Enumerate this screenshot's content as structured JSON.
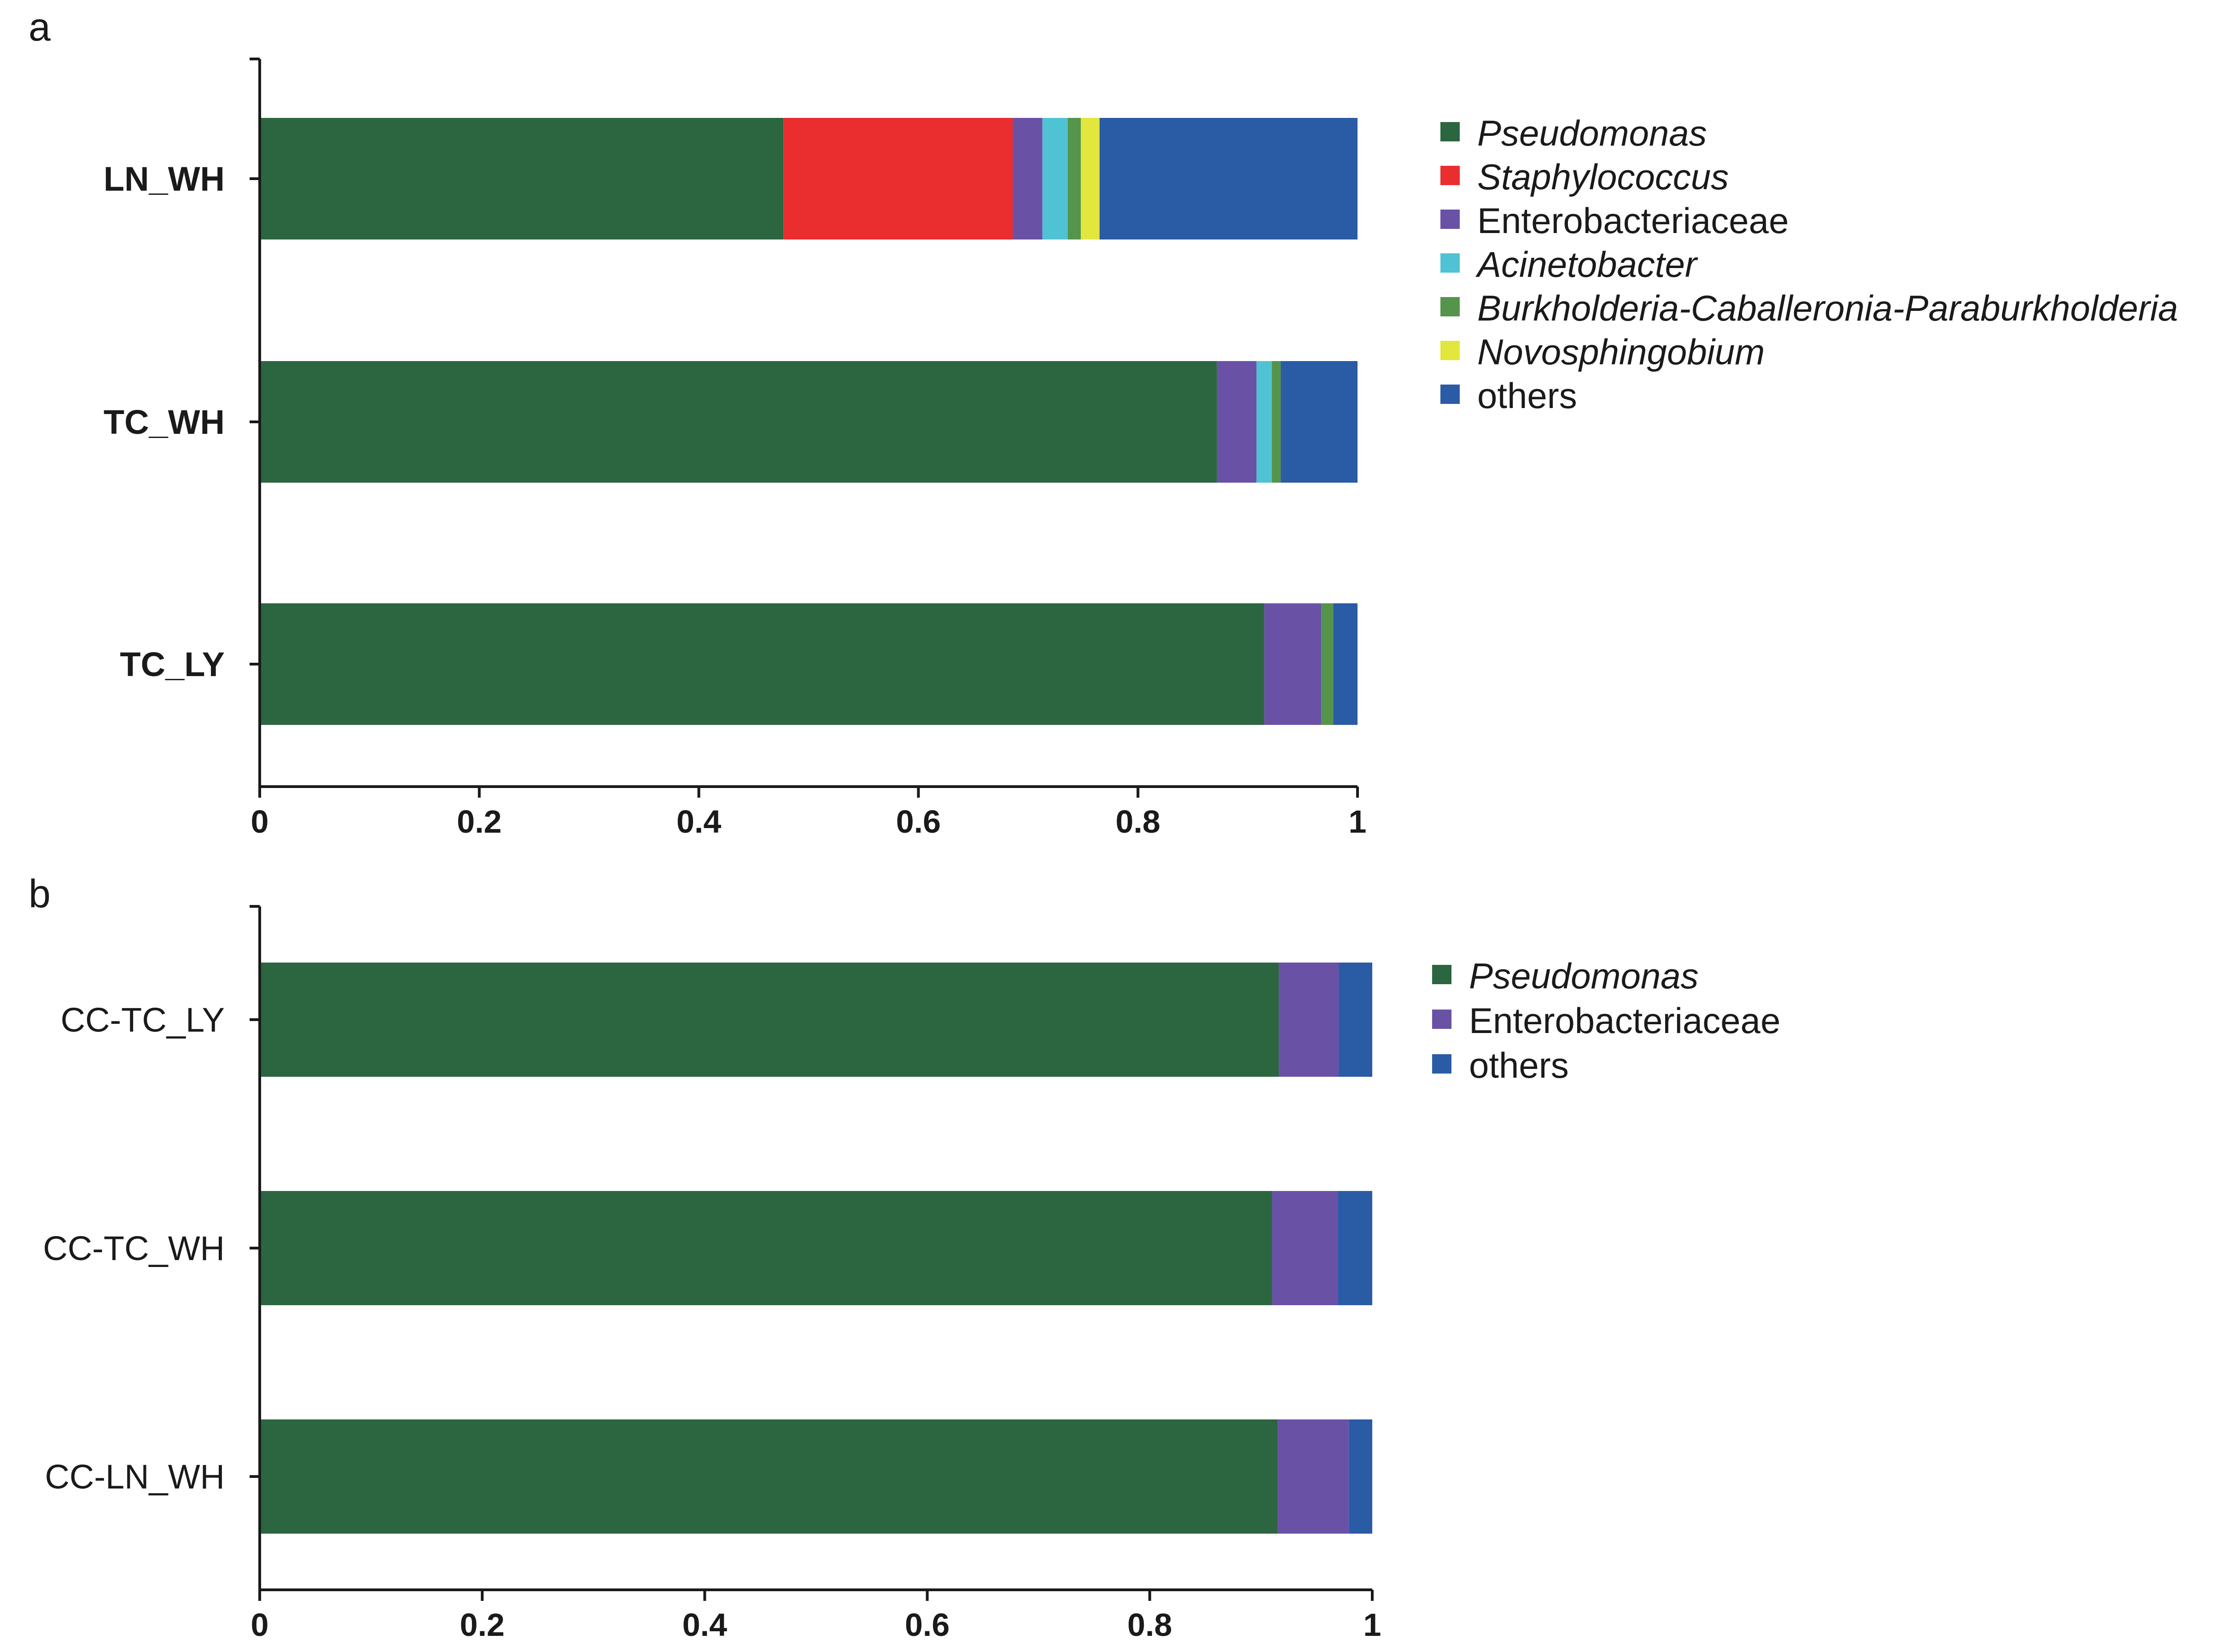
{
  "colors": {
    "Pseudomonas": "#2b6640",
    "Staphylococcus": "#ea2d2e",
    "Enterobacteriaceae": "#6951a6",
    "Acinetobacter": "#4fc3d3",
    "Burkholderia-Caballeronia-Paraburkholderia": "#55944b",
    "Novosphingobium": "#e3e63c",
    "others": "#2a5ba5"
  },
  "chart_data": [
    {
      "panel": "a",
      "type": "bar",
      "orientation": "horizontal",
      "stacked": true,
      "categories": [
        "LN_WH",
        "TC_WH",
        "TC_LY"
      ],
      "xlim": [
        0,
        1
      ],
      "xticks": [
        "0",
        "0.2",
        "0.4",
        "0.6",
        "0.8",
        "1"
      ],
      "series": [
        {
          "name": "Pseudomonas",
          "italic": true,
          "values": [
            0.477,
            0.872,
            0.915
          ]
        },
        {
          "name": "Staphylococcus",
          "italic": true,
          "values": [
            0.209,
            0.0,
            0.0
          ]
        },
        {
          "name": "Enterobacteriaceae",
          "italic": false,
          "values": [
            0.027,
            0.036,
            0.052
          ]
        },
        {
          "name": "Acinetobacter",
          "italic": true,
          "values": [
            0.023,
            0.014,
            0.0
          ]
        },
        {
          "name": "Burkholderia-Caballeronia-Paraburkholderia",
          "italic": true,
          "values": [
            0.012,
            0.008,
            0.011
          ]
        },
        {
          "name": "Novosphingobium",
          "italic": true,
          "values": [
            0.017,
            0.0,
            0.0
          ]
        },
        {
          "name": "others",
          "italic": false,
          "values": [
            0.235,
            0.07,
            0.022
          ]
        }
      ],
      "legend_position": "right"
    },
    {
      "panel": "b",
      "type": "bar",
      "orientation": "horizontal",
      "stacked": true,
      "categories": [
        "CC-TC_LY",
        "CC-TC_WH",
        "CC-LN_WH"
      ],
      "xlim": [
        0,
        1
      ],
      "xticks": [
        "0",
        "0.2",
        "0.4",
        "0.6",
        "0.8",
        "1"
      ],
      "series": [
        {
          "name": "Pseudomonas",
          "italic": true,
          "values": [
            0.916,
            0.91,
            0.915
          ]
        },
        {
          "name": "Enterobacteriaceae",
          "italic": false,
          "values": [
            0.054,
            0.059,
            0.064
          ]
        },
        {
          "name": "others",
          "italic": false,
          "values": [
            0.03,
            0.031,
            0.021
          ]
        }
      ],
      "legend_position": "right"
    }
  ]
}
